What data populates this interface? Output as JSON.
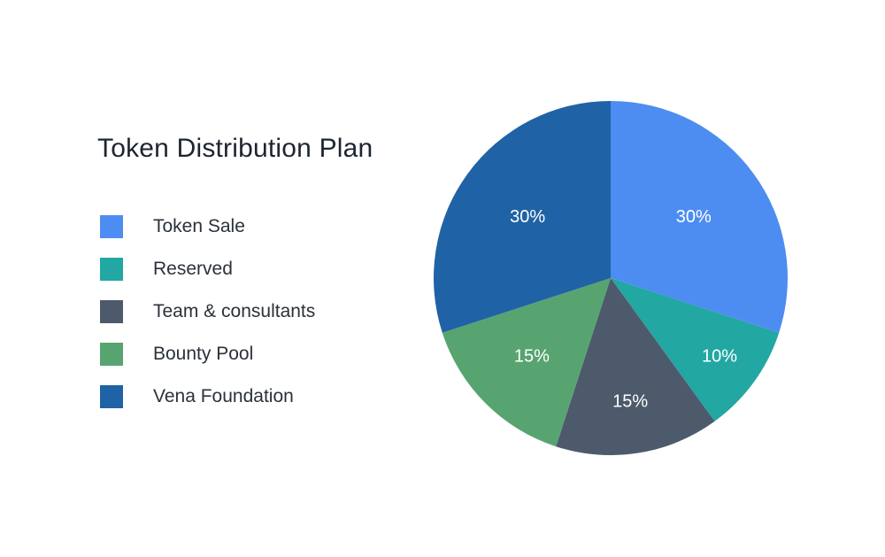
{
  "chart_data": {
    "type": "pie",
    "title": "Token Distribution Plan",
    "categories": [
      "Token Sale",
      "Reserved",
      "Team & consultants",
      "Bounty Pool",
      "Vena Foundation"
    ],
    "values": [
      30,
      10,
      15,
      15,
      30
    ],
    "slice_labels": [
      "30%",
      "10%",
      "15%",
      "15%",
      "30%"
    ],
    "colors": [
      "#4d8df1",
      "#22a7a3",
      "#4d5a6b",
      "#57a471",
      "#2062a6"
    ],
    "label_color": "#ffffff",
    "background": "#ffffff",
    "legend_position": "left",
    "start_angle": 0,
    "direction": "clockwise"
  }
}
